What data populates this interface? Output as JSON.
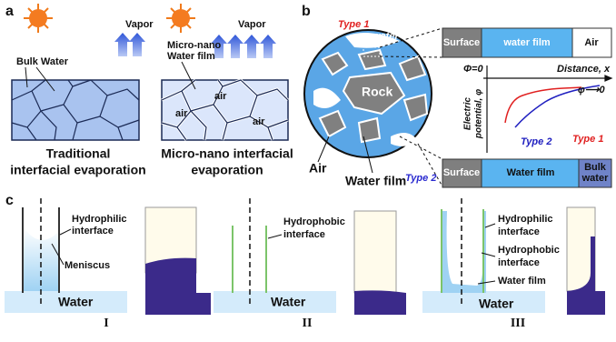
{
  "panels": {
    "a": {
      "label": "a",
      "vapor_left": "Vapor",
      "vapor_right": "Vapor",
      "bulk_water": "Bulk Water",
      "micro_nano": [
        "Micro-nano",
        "Water film"
      ],
      "air": [
        "air",
        "air",
        "air"
      ],
      "caption_left": [
        "Traditional",
        "interfacial evaporation"
      ],
      "caption_right": [
        "Micro-nano interfacial",
        "evaporation"
      ]
    },
    "b": {
      "label": "b",
      "water": "water",
      "type1": "Type 1",
      "rock": "Rock",
      "air": "Air",
      "water_film": "Water film",
      "type2": "Type 2",
      "top_bar": [
        "Surface",
        "water film",
        "Air"
      ],
      "phi0": "Φ=0",
      "distance": "Distance, x",
      "potential": [
        "Electric",
        "potential, φ"
      ],
      "phi_to_0": "φ⟶0",
      "curve_type2": "Type 2",
      "curve_type1": "Type 1",
      "bottom_bar": [
        "Surface",
        "Water  film",
        "Bulk",
        "water"
      ]
    },
    "c": {
      "label": "c",
      "I": {
        "hydrophilic": [
          "Hydrophilic",
          "interface"
        ],
        "meniscus": "Meniscus",
        "water": "Water",
        "numeral": "I"
      },
      "II": {
        "hydrophobic": [
          "Hydrophobic",
          "interface"
        ],
        "water": "Water",
        "numeral": "II"
      },
      "III": {
        "hydrophilic": [
          "Hydrophilic",
          "interface"
        ],
        "hydrophobic": [
          "Hydrophobic",
          "interface"
        ],
        "water_film": "Water film",
        "water": "Water",
        "numeral": "III"
      }
    }
  }
}
